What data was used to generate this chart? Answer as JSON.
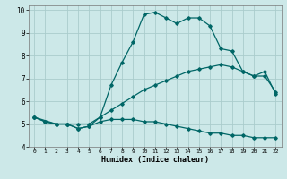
{
  "xlabel": "Humidex (Indice chaleur)",
  "bg_color": "#cce8e8",
  "grid_color": "#aacccc",
  "line_color": "#006666",
  "xlim": [
    -0.5,
    22.5
  ],
  "ylim": [
    4,
    10.2
  ],
  "xticks": [
    0,
    1,
    2,
    3,
    4,
    5,
    6,
    7,
    8,
    9,
    10,
    11,
    12,
    13,
    14,
    15,
    16,
    17,
    18,
    19,
    20,
    21,
    22
  ],
  "yticks": [
    4,
    5,
    6,
    7,
    8,
    9,
    10
  ],
  "series1_x": [
    0,
    1,
    2,
    3,
    4,
    5,
    6,
    7,
    8,
    9,
    10,
    11,
    12,
    13,
    14,
    15,
    16,
    17,
    18,
    19,
    20,
    21,
    22
  ],
  "series1_y": [
    5.3,
    5.1,
    5.0,
    5.0,
    4.8,
    4.9,
    5.1,
    5.2,
    5.2,
    5.2,
    5.1,
    5.1,
    5.0,
    4.9,
    4.8,
    4.7,
    4.6,
    4.6,
    4.5,
    4.5,
    4.4,
    4.4,
    4.4
  ],
  "series2_x": [
    0,
    1,
    2,
    3,
    4,
    5,
    6,
    7,
    8,
    9,
    10,
    11,
    12,
    13,
    14,
    15,
    16,
    17,
    18,
    19,
    20,
    21,
    22
  ],
  "series2_y": [
    5.3,
    5.1,
    5.0,
    5.0,
    5.0,
    5.0,
    5.3,
    5.6,
    5.9,
    6.2,
    6.5,
    6.7,
    6.9,
    7.1,
    7.3,
    7.4,
    7.5,
    7.6,
    7.5,
    7.3,
    7.1,
    7.1,
    6.4
  ],
  "series3_x": [
    0,
    2,
    3,
    4,
    5,
    6,
    7,
    8,
    9,
    10,
    11,
    12,
    13,
    14,
    15,
    16,
    17,
    18,
    19,
    20,
    21,
    22
  ],
  "series3_y": [
    5.3,
    5.0,
    5.0,
    4.8,
    4.9,
    5.3,
    6.7,
    7.7,
    8.6,
    9.8,
    9.9,
    9.65,
    9.4,
    9.65,
    9.65,
    9.3,
    8.3,
    8.2,
    7.3,
    7.1,
    7.3,
    6.3
  ]
}
